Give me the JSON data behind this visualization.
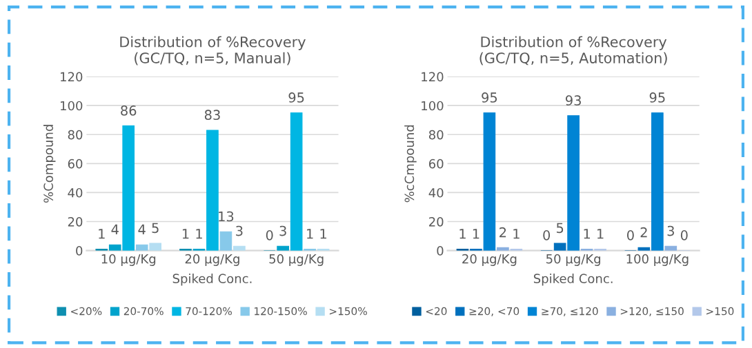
{
  "chart_data": [
    {
      "type": "bar",
      "title": "Distribution of %Recovery\n(GC/TQ, n=5, Manual)",
      "xlabel": "Spiked Conc.",
      "ylabel": "%Compound",
      "categories": [
        "10 µg/Kg",
        "20 µg/Kg",
        "50 µg/Kg"
      ],
      "ylim": [
        0,
        120
      ],
      "yticks": [
        0,
        20,
        40,
        60,
        80,
        100,
        120
      ],
      "grid": "y",
      "legend": "bottom",
      "data_labels": true,
      "series": [
        {
          "name": "<20%",
          "color": "#0e8fb0",
          "values": [
            1,
            1,
            0
          ]
        },
        {
          "name": "20-70%",
          "color": "#00a3cc",
          "values": [
            4,
            1,
            3
          ]
        },
        {
          "name": "70-120%",
          "color": "#00b6e3",
          "values": [
            86,
            83,
            95
          ]
        },
        {
          "name": "120-150%",
          "color": "#87c9ea",
          "values": [
            4,
            13,
            1
          ]
        },
        {
          "name": ">150%",
          "color": "#b5def2",
          "values": [
            5,
            3,
            1
          ]
        }
      ]
    },
    {
      "type": "bar",
      "title": "Distribution of %Recovery\n(GC/TQ, n=5, Automation)",
      "xlabel": "Spiked Conc.",
      "ylabel": "%cCmpound",
      "categories": [
        "20 µg/Kg",
        "50 µg/Kg",
        "100 µg/Kg"
      ],
      "ylim": [
        0,
        120
      ],
      "yticks": [
        0,
        20,
        40,
        60,
        80,
        100,
        120
      ],
      "grid": "y",
      "legend": "bottom",
      "data_labels": true,
      "series": [
        {
          "name": "<20",
          "color": "#005f9e",
          "values": [
            1,
            0,
            0
          ]
        },
        {
          "name": "≥20, <70",
          "color": "#0070bd",
          "values": [
            1,
            5,
            2
          ]
        },
        {
          "name": "≥70, ≤120",
          "color": "#0084d4",
          "values": [
            95,
            93,
            95
          ]
        },
        {
          "name": ">120, ≤150",
          "color": "#8ab0e0",
          "values": [
            2,
            1,
            3
          ]
        },
        {
          "name": ">150",
          "color": "#b3c8ea",
          "values": [
            1,
            1,
            0
          ]
        }
      ]
    }
  ]
}
